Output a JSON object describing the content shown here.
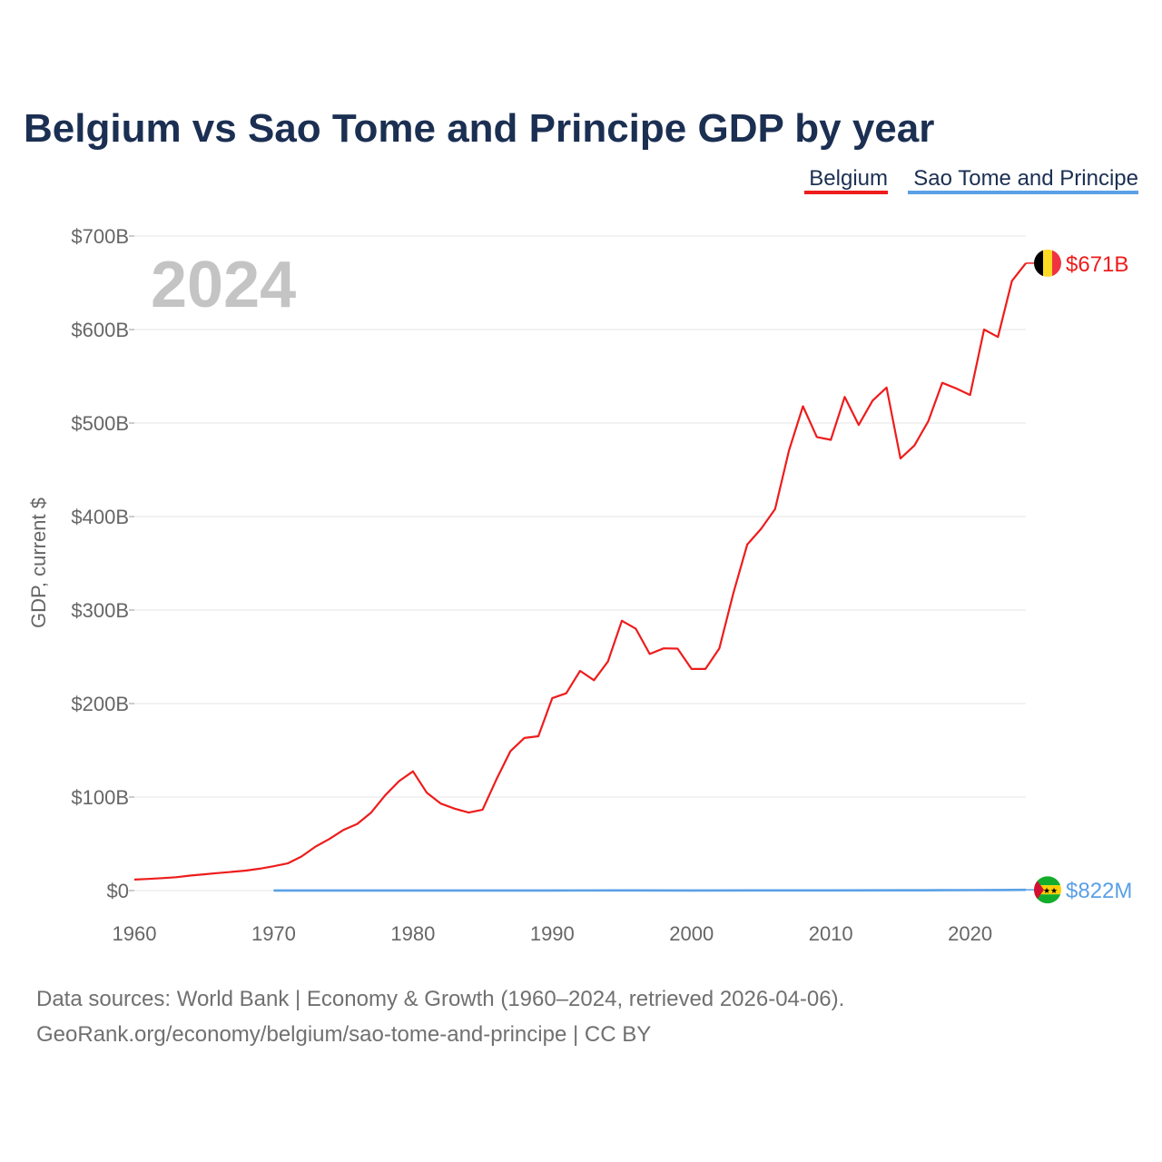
{
  "chart_data": {
    "type": "line",
    "title": "Belgium vs Sao Tome and Principe GDP by year",
    "ylabel": "GDP, current $",
    "xlabel": "",
    "xlim": [
      1960,
      2024
    ],
    "ylim": [
      0,
      700
    ],
    "y_unit": "billions of current US$",
    "x_ticks": [
      1960,
      1970,
      1980,
      1990,
      2000,
      2010,
      2020
    ],
    "x_tick_labels": [
      "1960",
      "1970",
      "1980",
      "1990",
      "2000",
      "2010",
      "2020"
    ],
    "y_ticks": [
      0,
      100,
      200,
      300,
      400,
      500,
      600,
      700
    ],
    "y_tick_labels": [
      "$0",
      "$100B",
      "$200B",
      "$300B",
      "$400B",
      "$500B",
      "$600B",
      "$700B"
    ],
    "year_label": "2024",
    "legend_placement": "top-right",
    "series": [
      {
        "name": "Belgium",
        "color": "#ee1c1c",
        "end_label": "$671B",
        "flag": "belgium-flag",
        "x": [
          1960,
          1961,
          1962,
          1963,
          1964,
          1965,
          1966,
          1967,
          1968,
          1969,
          1970,
          1971,
          1972,
          1973,
          1974,
          1975,
          1976,
          1977,
          1978,
          1979,
          1980,
          1981,
          1982,
          1983,
          1984,
          1985,
          1986,
          1987,
          1988,
          1989,
          1990,
          1991,
          1992,
          1993,
          1994,
          1995,
          1996,
          1997,
          1998,
          1999,
          2000,
          2001,
          2002,
          2003,
          2004,
          2005,
          2006,
          2007,
          2008,
          2009,
          2010,
          2011,
          2012,
          2013,
          2014,
          2015,
          2016,
          2017,
          2018,
          2019,
          2020,
          2021,
          2022,
          2023,
          2024
        ],
        "values": [
          11.7,
          12.4,
          13.3,
          14.3,
          16.0,
          17.4,
          18.7,
          20.0,
          21.4,
          23.4,
          26.0,
          29.0,
          36.4,
          47.0,
          55.1,
          64.8,
          71.3,
          83.4,
          101.7,
          117.0,
          127.5,
          104.6,
          93.0,
          87.6,
          83.4,
          86.5,
          119.0,
          149.1,
          163.2,
          165.0,
          205.7,
          211.0,
          235.0,
          225.0,
          245.0,
          288.5,
          280.0,
          253.0,
          259.0,
          258.7,
          237.0,
          237.0,
          259.0,
          318.0,
          370.0,
          387.0,
          408.0,
          471.0,
          518.0,
          485.0,
          482.0,
          528.0,
          498.0,
          524.0,
          538.0,
          462.0,
          476.0,
          502.0,
          543.0,
          537.0,
          530.0,
          600.0,
          592.0,
          652.0,
          671.0
        ]
      },
      {
        "name": "Sao Tome and Principe",
        "color": "#5aa0e6",
        "end_label": "$822M",
        "flag": "sao-tome-and-principe-flag",
        "x": [
          1970,
          1975,
          1980,
          1985,
          1990,
          1995,
          2000,
          2005,
          2010,
          2015,
          2018,
          2020,
          2022,
          2023,
          2024
        ],
        "values": [
          0.05,
          0.08,
          0.1,
          0.12,
          0.14,
          0.16,
          0.13,
          0.16,
          0.2,
          0.32,
          0.41,
          0.48,
          0.55,
          0.66,
          0.822
        ]
      }
    ]
  },
  "source": {
    "line1": "Data sources: World Bank | Economy & Growth (1960–2024, retrieved 2026-04-06).",
    "line2": "GeoRank.org/economy/belgium/sao-tome-and-principe | CC BY"
  }
}
